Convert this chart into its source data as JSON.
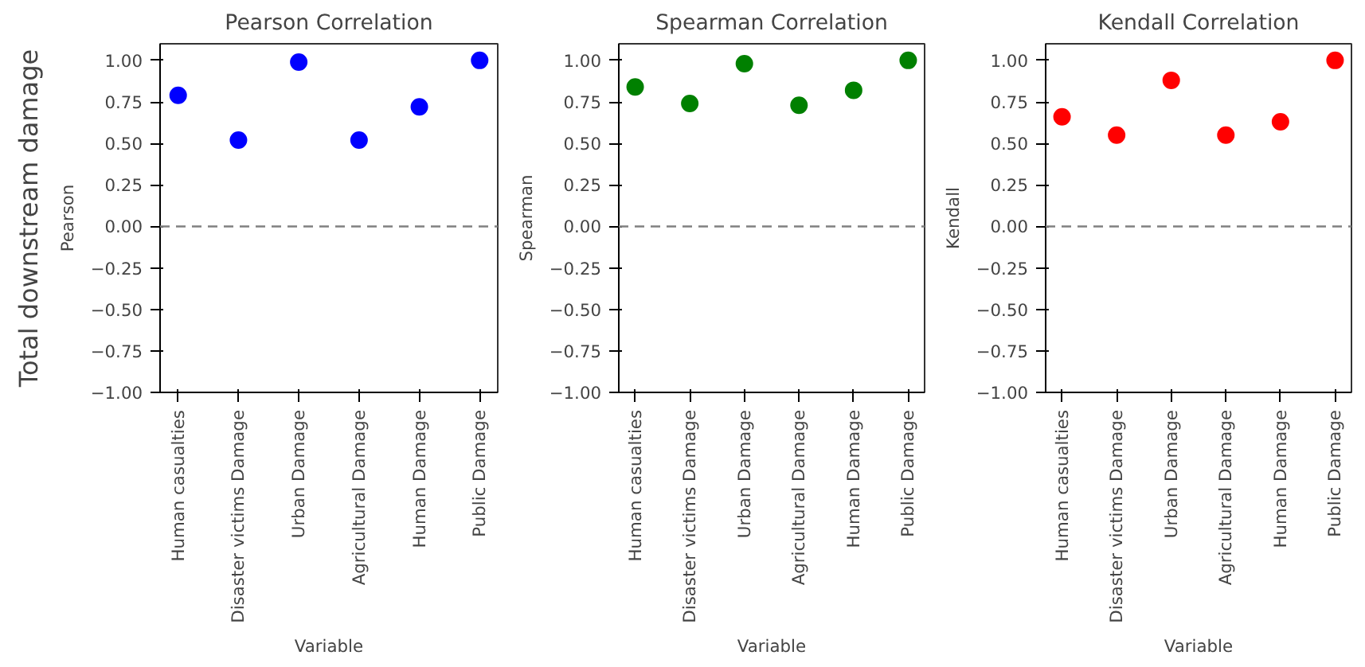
{
  "chart_data": [
    {
      "type": "scatter",
      "title": "Pearson Correlation",
      "xlabel": "Variable",
      "ylabel": "Pearson",
      "annotations": [
        "Total downstream damage"
      ],
      "categories": [
        "Human casualties",
        "Disaster victims Damage",
        "Urban Damage",
        "Agricultural Damage",
        "Human Damage",
        "Public Damage"
      ],
      "series": [
        {
          "color": "#0000ff",
          "values": [
            0.79,
            0.52,
            0.99,
            0.52,
            0.72,
            1.0
          ]
        }
      ],
      "ylim": [
        -1.0,
        1.1
      ],
      "yticks": [
        {
          "value": -1,
          "label": "−1.00"
        },
        {
          "value": -0.75,
          "label": "−0.75"
        },
        {
          "value": -0.5,
          "label": "−0.50"
        },
        {
          "value": -0.25,
          "label": "−0.25"
        },
        {
          "value": 0,
          "label": "0.00"
        },
        {
          "value": 0.25,
          "label": "0.25"
        },
        {
          "value": 0.5,
          "label": "0.50"
        },
        {
          "value": 0.75,
          "label": "0.75"
        },
        {
          "value": 1,
          "label": "1.00"
        }
      ],
      "ref_lines": [
        {
          "axis": "y",
          "value": 0,
          "color": "#808080",
          "line_style": "dashed"
        }
      ],
      "marker": "circle",
      "grid": false
    },
    {
      "type": "scatter",
      "title": "Spearman Correlation",
      "xlabel": "Variable",
      "ylabel": "Spearman",
      "categories": [
        "Human casualties",
        "Disaster victims Damage",
        "Urban Damage",
        "Agricultural Damage",
        "Human Damage",
        "Public Damage"
      ],
      "series": [
        {
          "color": "#008000",
          "values": [
            0.84,
            0.74,
            0.98,
            0.73,
            0.82,
            1.0
          ]
        }
      ],
      "ylim": [
        -1.0,
        1.1
      ],
      "yticks": [
        {
          "value": -1,
          "label": "−1.00"
        },
        {
          "value": -0.75,
          "label": "−0.75"
        },
        {
          "value": -0.5,
          "label": "−0.50"
        },
        {
          "value": -0.25,
          "label": "−0.25"
        },
        {
          "value": 0,
          "label": "0.00"
        },
        {
          "value": 0.25,
          "label": "0.25"
        },
        {
          "value": 0.5,
          "label": "0.50"
        },
        {
          "value": 0.75,
          "label": "0.75"
        },
        {
          "value": 1,
          "label": "1.00"
        }
      ],
      "ref_lines": [
        {
          "axis": "y",
          "value": 0,
          "color": "#808080",
          "line_style": "dashed"
        }
      ],
      "marker": "circle",
      "grid": false
    },
    {
      "type": "scatter",
      "title": "Kendall Correlation",
      "xlabel": "Variable",
      "ylabel": "Kendall",
      "categories": [
        "Human casualties",
        "Disaster victims Damage",
        "Urban Damage",
        "Agricultural Damage",
        "Human Damage",
        "Public Damage"
      ],
      "series": [
        {
          "color": "#ff0000",
          "values": [
            0.66,
            0.55,
            0.88,
            0.55,
            0.63,
            1.0
          ]
        }
      ],
      "ylim": [
        -1.0,
        1.1
      ],
      "yticks": [
        {
          "value": -1,
          "label": "−1.00"
        },
        {
          "value": -0.75,
          "label": "−0.75"
        },
        {
          "value": -0.5,
          "label": "−0.50"
        },
        {
          "value": -0.25,
          "label": "−0.25"
        },
        {
          "value": 0,
          "label": "0.00"
        },
        {
          "value": 0.25,
          "label": "0.25"
        },
        {
          "value": 0.5,
          "label": "0.50"
        },
        {
          "value": 0.75,
          "label": "0.75"
        },
        {
          "value": 1,
          "label": "1.00"
        }
      ],
      "ref_lines": [
        {
          "axis": "y",
          "value": 0,
          "color": "#808080",
          "line_style": "dashed"
        }
      ],
      "marker": "circle",
      "grid": false
    }
  ]
}
